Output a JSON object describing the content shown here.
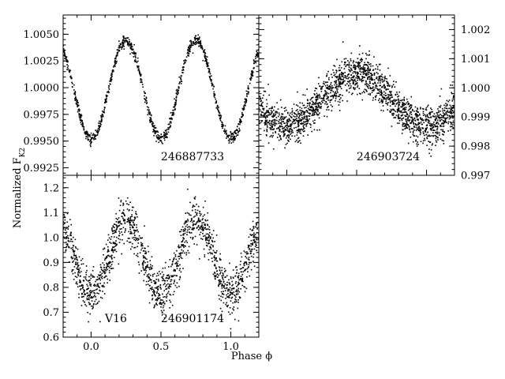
{
  "figure": {
    "xlabel": "Phase ϕ",
    "ylabel": "Normalized F",
    "ylabel_sub": "K2"
  },
  "chart_data": [
    {
      "type": "scatter",
      "label": "246887733",
      "xlim": [
        -0.2,
        1.2
      ],
      "ylim": [
        0.9918,
        1.0068
      ],
      "y_axis_side": "left",
      "yticks": [
        0.9925,
        0.995,
        0.9975,
        1.0,
        1.0025,
        1.005
      ],
      "ytick_labels": [
        "0.9925",
        "0.9950",
        "0.9975",
        "1.0000",
        "1.0025",
        "1.0050"
      ],
      "model": {
        "mean": 0.99985,
        "amp": 0.0046,
        "harmonic": 2,
        "phase_shift": 0.0,
        "noise": 0.00025
      },
      "n_points": 1100,
      "samples": [
        [
          -0.2,
          1.0038
        ],
        [
          0.0,
          0.9951
        ],
        [
          0.25,
          1.0043
        ],
        [
          0.5,
          0.997
        ],
        [
          0.75,
          1.0045
        ],
        [
          1.0,
          0.995
        ],
        [
          1.2,
          1.0038
        ]
      ]
    },
    {
      "type": "scatter",
      "label": "246903724",
      "xlim": [
        -0.2,
        1.2
      ],
      "ylim": [
        0.997,
        1.0025
      ],
      "y_axis_side": "right",
      "yticks": [
        0.997,
        0.998,
        0.999,
        1.0,
        1.001,
        1.002
      ],
      "ytick_labels": [
        "0.997",
        "0.998",
        "0.999",
        "1.000",
        "1.001",
        "1.002"
      ],
      "model": {
        "mean": 0.9996,
        "amp": 0.0009,
        "harmonic": 1,
        "phase_shift": 0.0,
        "noise": 0.00033
      },
      "n_points": 1900,
      "samples": [
        [
          -0.2,
          0.9995
        ],
        [
          0.0,
          0.9985
        ],
        [
          0.3,
          1.0003
        ],
        [
          0.5,
          1.0002
        ],
        [
          0.7,
          1.0006
        ],
        [
          1.0,
          0.9982
        ],
        [
          1.2,
          1.0
        ]
      ]
    },
    {
      "type": "scatter",
      "label": "246901174",
      "extra_label": "V16",
      "xlim": [
        -0.2,
        1.2
      ],
      "ylim": [
        0.6,
        1.25
      ],
      "y_axis_side": "left",
      "yticks": [
        0.6,
        0.7,
        0.8,
        0.9,
        1.0,
        1.1,
        1.2
      ],
      "ytick_labels": [
        "0.6",
        "0.7",
        "0.8",
        "0.9",
        "1.0",
        "1.1",
        "1.2"
      ],
      "xticks": [
        0.0,
        0.5,
        1.0
      ],
      "xtick_labels": [
        "0.0",
        "0.5",
        "1.0"
      ],
      "model": {
        "mean": 0.92,
        "amp": 0.15,
        "harmonic": 2,
        "phase_shift": 0.0,
        "noise": 0.045
      },
      "n_points": 1500,
      "samples": [
        [
          -0.2,
          1.02
        ],
        [
          0.0,
          0.75
        ],
        [
          0.25,
          1.05
        ],
        [
          0.5,
          0.8
        ],
        [
          0.75,
          1.07
        ],
        [
          1.0,
          0.74
        ],
        [
          1.2,
          1.02
        ]
      ]
    }
  ]
}
